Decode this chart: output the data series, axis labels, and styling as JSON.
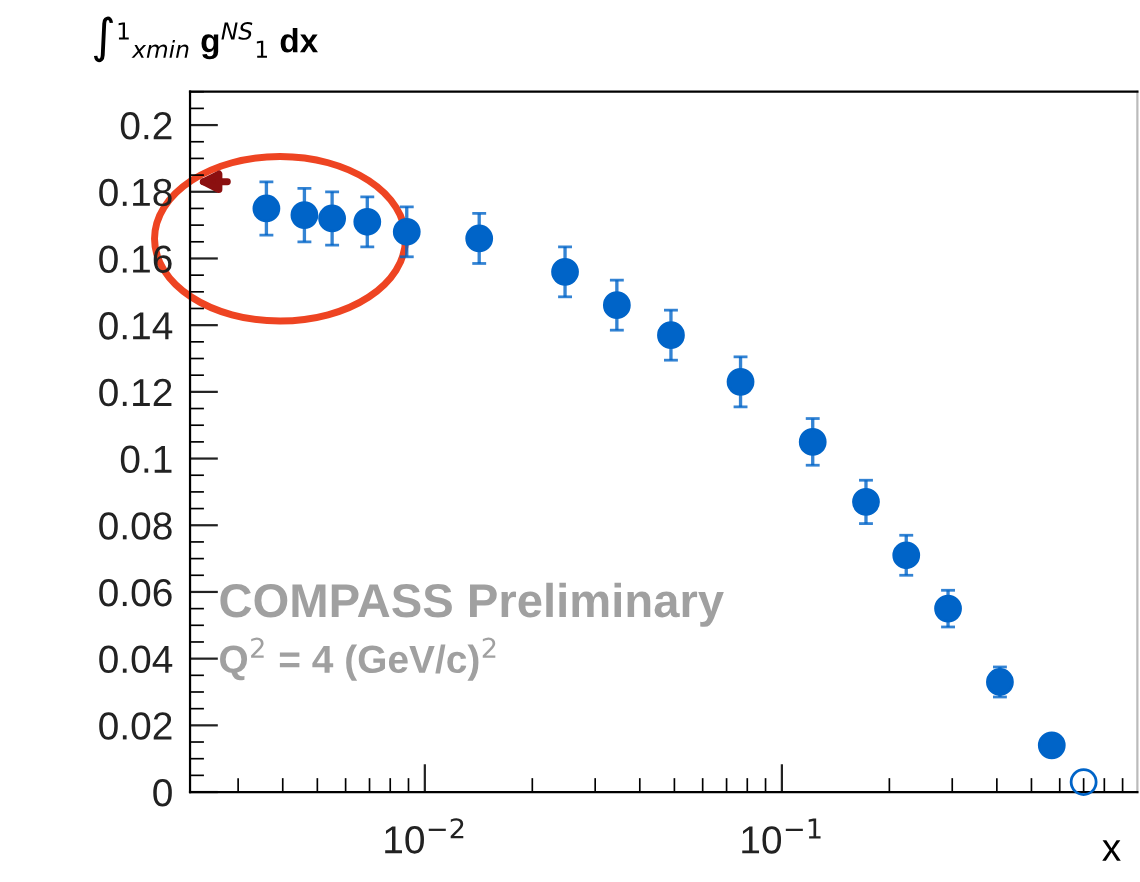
{
  "chart_data": {
    "type": "scatter",
    "ylabel": "∫$^{1}$$_{xmin}$ g$^{NS}$$_{1}$ dx",
    "xlabel": "x",
    "annotations": [
      "COMPASS Preliminary",
      "Q$^{2}$ = 4 (GeV/c)$^{2}$"
    ],
    "log": "x",
    "xlim": [
      0.0022,
      0.99
    ],
    "xticks": [
      {
        "value": 0.01,
        "label": "10$^{−2}$"
      },
      {
        "value": 0.1,
        "label": "10$^{−1}$"
      }
    ],
    "ylim": [
      0,
      0.21
    ],
    "yticks": [
      0,
      0.02,
      0.04,
      0.06,
      0.08,
      0.1,
      0.12,
      0.14,
      0.16,
      0.18,
      0.2
    ],
    "marker": "circle",
    "grid": false,
    "legend": false,
    "series": [
      {
        "color": "#0064c8",
        "x": [
          0.0036,
          0.0046,
          0.0055,
          0.0069,
          0.0089,
          0.0142,
          0.0247,
          0.0345,
          0.0489,
          0.0766,
          0.122,
          0.172,
          0.223,
          0.292,
          0.408,
          0.57
        ],
        "values": [
          0.175,
          0.173,
          0.172,
          0.171,
          0.168,
          0.166,
          0.156,
          0.146,
          0.137,
          0.123,
          0.105,
          0.087,
          0.071,
          0.055,
          0.033,
          0.014
        ],
        "errors": [
          0.008,
          0.008,
          0.008,
          0.0075,
          0.0075,
          0.0075,
          0.0075,
          0.0075,
          0.0075,
          0.0075,
          0.007,
          0.0065,
          0.006,
          0.0055,
          0.0045,
          0.002
        ]
      },
      {
        "color": "#0064c8",
        "x": [
          0.7
        ],
        "values": [
          0.003
        ]
      }
    ]
  }
}
